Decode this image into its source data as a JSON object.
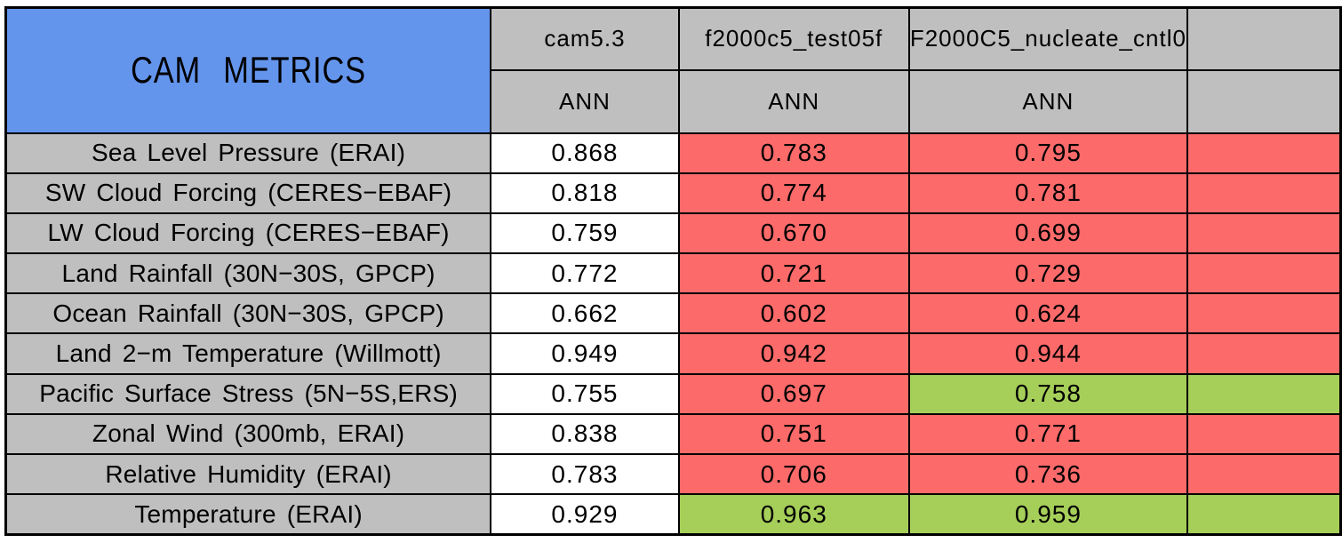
{
  "table": {
    "title": "CAM METRICS",
    "columns": [
      {
        "model": "cam5.3",
        "season": "ANN"
      },
      {
        "model": "f2000c5_test05f",
        "season": "ANN"
      },
      {
        "model": "F2000C5_nucleate_cntl0",
        "season": "ANN"
      },
      {
        "model": "",
        "season": ""
      }
    ],
    "colors": {
      "blue": "#6495ED",
      "gray": "#BFBFBF",
      "red": "#FC6A6A",
      "green": "#A6CF5A",
      "white": "#FFFFFF",
      "border": "#000000"
    },
    "rows": [
      {
        "label": "Sea Level Pressure (ERAI)",
        "values": [
          {
            "text": "0.868",
            "bg": "white"
          },
          {
            "text": "0.783",
            "bg": "red"
          },
          {
            "text": "0.795",
            "bg": "red"
          },
          {
            "text": "",
            "bg": "red"
          }
        ]
      },
      {
        "label": "SW Cloud Forcing (CERES−EBAF)",
        "values": [
          {
            "text": "0.818",
            "bg": "white"
          },
          {
            "text": "0.774",
            "bg": "red"
          },
          {
            "text": "0.781",
            "bg": "red"
          },
          {
            "text": "",
            "bg": "red"
          }
        ]
      },
      {
        "label": "LW Cloud Forcing (CERES−EBAF)",
        "values": [
          {
            "text": "0.759",
            "bg": "white"
          },
          {
            "text": "0.670",
            "bg": "red"
          },
          {
            "text": "0.699",
            "bg": "red"
          },
          {
            "text": "",
            "bg": "red"
          }
        ]
      },
      {
        "label": "Land Rainfall (30N−30S, GPCP)",
        "values": [
          {
            "text": "0.772",
            "bg": "white"
          },
          {
            "text": "0.721",
            "bg": "red"
          },
          {
            "text": "0.729",
            "bg": "red"
          },
          {
            "text": "",
            "bg": "red"
          }
        ]
      },
      {
        "label": "Ocean Rainfall (30N−30S, GPCP)",
        "values": [
          {
            "text": "0.662",
            "bg": "white"
          },
          {
            "text": "0.602",
            "bg": "red"
          },
          {
            "text": "0.624",
            "bg": "red"
          },
          {
            "text": "",
            "bg": "red"
          }
        ]
      },
      {
        "label": "Land 2−m Temperature (Willmott)",
        "values": [
          {
            "text": "0.949",
            "bg": "white"
          },
          {
            "text": "0.942",
            "bg": "red"
          },
          {
            "text": "0.944",
            "bg": "red"
          },
          {
            "text": "",
            "bg": "red"
          }
        ]
      },
      {
        "label": "Pacific Surface Stress (5N−5S,ERS)",
        "values": [
          {
            "text": "0.755",
            "bg": "white"
          },
          {
            "text": "0.697",
            "bg": "red"
          },
          {
            "text": "0.758",
            "bg": "green"
          },
          {
            "text": "",
            "bg": "green"
          }
        ]
      },
      {
        "label": "Zonal Wind (300mb, ERAI)",
        "values": [
          {
            "text": "0.838",
            "bg": "white"
          },
          {
            "text": "0.751",
            "bg": "red"
          },
          {
            "text": "0.771",
            "bg": "red"
          },
          {
            "text": "",
            "bg": "red"
          }
        ]
      },
      {
        "label": "Relative Humidity (ERAI)",
        "values": [
          {
            "text": "0.783",
            "bg": "white"
          },
          {
            "text": "0.706",
            "bg": "red"
          },
          {
            "text": "0.736",
            "bg": "red"
          },
          {
            "text": "",
            "bg": "red"
          }
        ]
      },
      {
        "label": "Temperature (ERAI)",
        "values": [
          {
            "text": "0.929",
            "bg": "white"
          },
          {
            "text": "0.963",
            "bg": "green"
          },
          {
            "text": "0.959",
            "bg": "green"
          },
          {
            "text": "",
            "bg": "green"
          }
        ]
      }
    ]
  },
  "chart_data": {
    "type": "table",
    "title": "CAM METRICS",
    "columns": [
      {
        "model": "cam5.3",
        "season": "ANN"
      },
      {
        "model": "f2000c5_test05f",
        "season": "ANN"
      },
      {
        "model": "F2000C5_nucleate_cntl0",
        "season": "ANN"
      }
    ],
    "metrics": [
      "Sea Level Pressure (ERAI)",
      "SW Cloud Forcing (CERES−EBAF)",
      "LW Cloud Forcing (CERES−EBAF)",
      "Land Rainfall (30N−30S, GPCP)",
      "Ocean Rainfall (30N−30S, GPCP)",
      "Land 2−m Temperature (Willmott)",
      "Pacific Surface Stress (5N−5S,ERS)",
      "Zonal Wind (300mb, ERAI)",
      "Relative Humidity (ERAI)",
      "Temperature (ERAI)"
    ],
    "series": [
      {
        "name": "cam5.3",
        "values": [
          0.868,
          0.818,
          0.759,
          0.772,
          0.662,
          0.949,
          0.755,
          0.838,
          0.783,
          0.929
        ],
        "cell_colors": [
          "white",
          "white",
          "white",
          "white",
          "white",
          "white",
          "white",
          "white",
          "white",
          "white"
        ]
      },
      {
        "name": "f2000c5_test05f",
        "values": [
          0.783,
          0.774,
          0.67,
          0.721,
          0.602,
          0.942,
          0.697,
          0.751,
          0.706,
          0.963
        ],
        "cell_colors": [
          "red",
          "red",
          "red",
          "red",
          "red",
          "red",
          "red",
          "red",
          "red",
          "green"
        ]
      },
      {
        "name": "F2000C5_nucleate_cntl0",
        "values": [
          0.795,
          0.781,
          0.699,
          0.729,
          0.624,
          0.944,
          0.758,
          0.771,
          0.736,
          0.959
        ],
        "cell_colors": [
          "red",
          "red",
          "red",
          "red",
          "red",
          "red",
          "green",
          "red",
          "red",
          "green"
        ]
      }
    ],
    "highlight_colors": {
      "red": "#FC6A6A",
      "green": "#A6CF5A",
      "white": "#FFFFFF"
    },
    "layout": {
      "header_bg": "#BFBFBF",
      "title_bg": "#6495ED",
      "grid": true,
      "right_edge_clipped": true
    }
  }
}
